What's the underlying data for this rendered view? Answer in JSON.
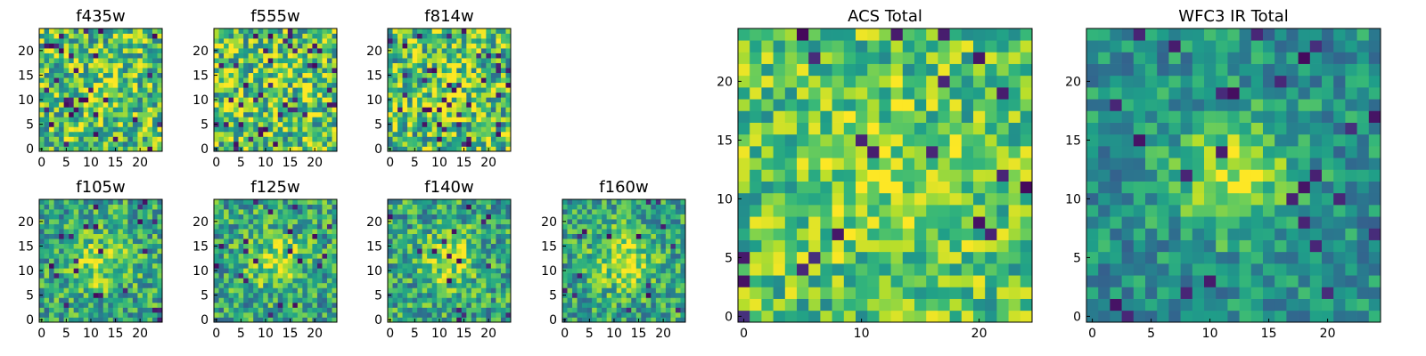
{
  "chart_data": [
    {
      "type": "heatmap",
      "title": "f435w",
      "grid_size": 25,
      "colormap": "viridis",
      "seed": 11,
      "center_boost": 0.1,
      "sigma": 4,
      "noise": 0.34,
      "dark_prob": 0.05,
      "base": 0.7,
      "xticks": [
        0,
        5,
        10,
        15,
        20
      ],
      "yticks": [
        0,
        5,
        10,
        15,
        20
      ],
      "xlim": [
        0,
        25
      ],
      "ylim": [
        0,
        25
      ]
    },
    {
      "type": "heatmap",
      "title": "f555w",
      "grid_size": 25,
      "colormap": "viridis",
      "seed": 23,
      "center_boost": 0.05,
      "sigma": 4,
      "noise": 0.36,
      "dark_prob": 0.06,
      "base": 0.72,
      "xticks": [
        0,
        5,
        10,
        15,
        20
      ],
      "yticks": [
        0,
        5,
        10,
        15,
        20
      ],
      "xlim": [
        0,
        25
      ],
      "ylim": [
        0,
        25
      ]
    },
    {
      "type": "heatmap",
      "title": "f814w",
      "grid_size": 25,
      "colormap": "viridis",
      "seed": 37,
      "center_boost": 0.15,
      "sigma": 4,
      "noise": 0.36,
      "dark_prob": 0.06,
      "base": 0.7,
      "xticks": [
        0,
        5,
        10,
        15,
        20
      ],
      "yticks": [
        0,
        5,
        10,
        15,
        20
      ],
      "xlim": [
        0,
        25
      ],
      "ylim": [
        0,
        25
      ]
    },
    {
      "type": "heatmap",
      "title": "f105w",
      "grid_size": 25,
      "colormap": "viridis",
      "seed": 41,
      "center_boost": 0.3,
      "sigma": 4,
      "noise": 0.28,
      "dark_prob": 0.03,
      "base": 0.58,
      "xticks": [
        0,
        5,
        10,
        15,
        20
      ],
      "yticks": [
        0,
        5,
        10,
        15,
        20
      ],
      "xlim": [
        0,
        25
      ],
      "ylim": [
        0,
        25
      ]
    },
    {
      "type": "heatmap",
      "title": "f125w",
      "grid_size": 25,
      "colormap": "viridis",
      "seed": 53,
      "center_boost": 0.3,
      "sigma": 4,
      "noise": 0.28,
      "dark_prob": 0.03,
      "base": 0.58,
      "xticks": [
        0,
        5,
        10,
        15,
        20
      ],
      "yticks": [
        0,
        5,
        10,
        15,
        20
      ],
      "xlim": [
        0,
        25
      ],
      "ylim": [
        0,
        25
      ]
    },
    {
      "type": "heatmap",
      "title": "f140w",
      "grid_size": 25,
      "colormap": "viridis",
      "seed": 67,
      "center_boost": 0.32,
      "sigma": 4,
      "noise": 0.28,
      "dark_prob": 0.03,
      "base": 0.58,
      "xticks": [
        0,
        5,
        10,
        15,
        20
      ],
      "yticks": [
        0,
        5,
        10,
        15,
        20
      ],
      "xlim": [
        0,
        25
      ],
      "ylim": [
        0,
        25
      ]
    },
    {
      "type": "heatmap",
      "title": "f160w",
      "grid_size": 25,
      "colormap": "viridis",
      "seed": 79,
      "center_boost": 0.35,
      "sigma": 4,
      "noise": 0.26,
      "dark_prob": 0.02,
      "base": 0.58,
      "xticks": [
        0,
        5,
        10,
        15,
        20
      ],
      "yticks": [
        0,
        5,
        10,
        15,
        20
      ],
      "xlim": [
        0,
        25
      ],
      "ylim": [
        0,
        25
      ]
    },
    {
      "type": "heatmap",
      "title": "ACS Total",
      "grid_size": 25,
      "colormap": "viridis",
      "seed": 91,
      "center_boost": 0.15,
      "sigma": 4,
      "noise": 0.26,
      "dark_prob": 0.03,
      "base": 0.72,
      "xticks": [
        0,
        10,
        20
      ],
      "yticks": [
        0,
        5,
        10,
        15,
        20
      ],
      "xlim": [
        0,
        25
      ],
      "ylim": [
        0,
        25
      ]
    },
    {
      "type": "heatmap",
      "title": "WFC3 IR Total",
      "grid_size": 25,
      "colormap": "viridis",
      "seed": 103,
      "center_boost": 0.4,
      "sigma": 3.5,
      "noise": 0.2,
      "dark_prob": 0.035,
      "base": 0.5,
      "xticks": [
        0,
        5,
        10,
        15,
        20
      ],
      "yticks": [
        0,
        5,
        10,
        15,
        20
      ],
      "xlim": [
        0,
        25
      ],
      "ylim": [
        0,
        25
      ]
    }
  ]
}
